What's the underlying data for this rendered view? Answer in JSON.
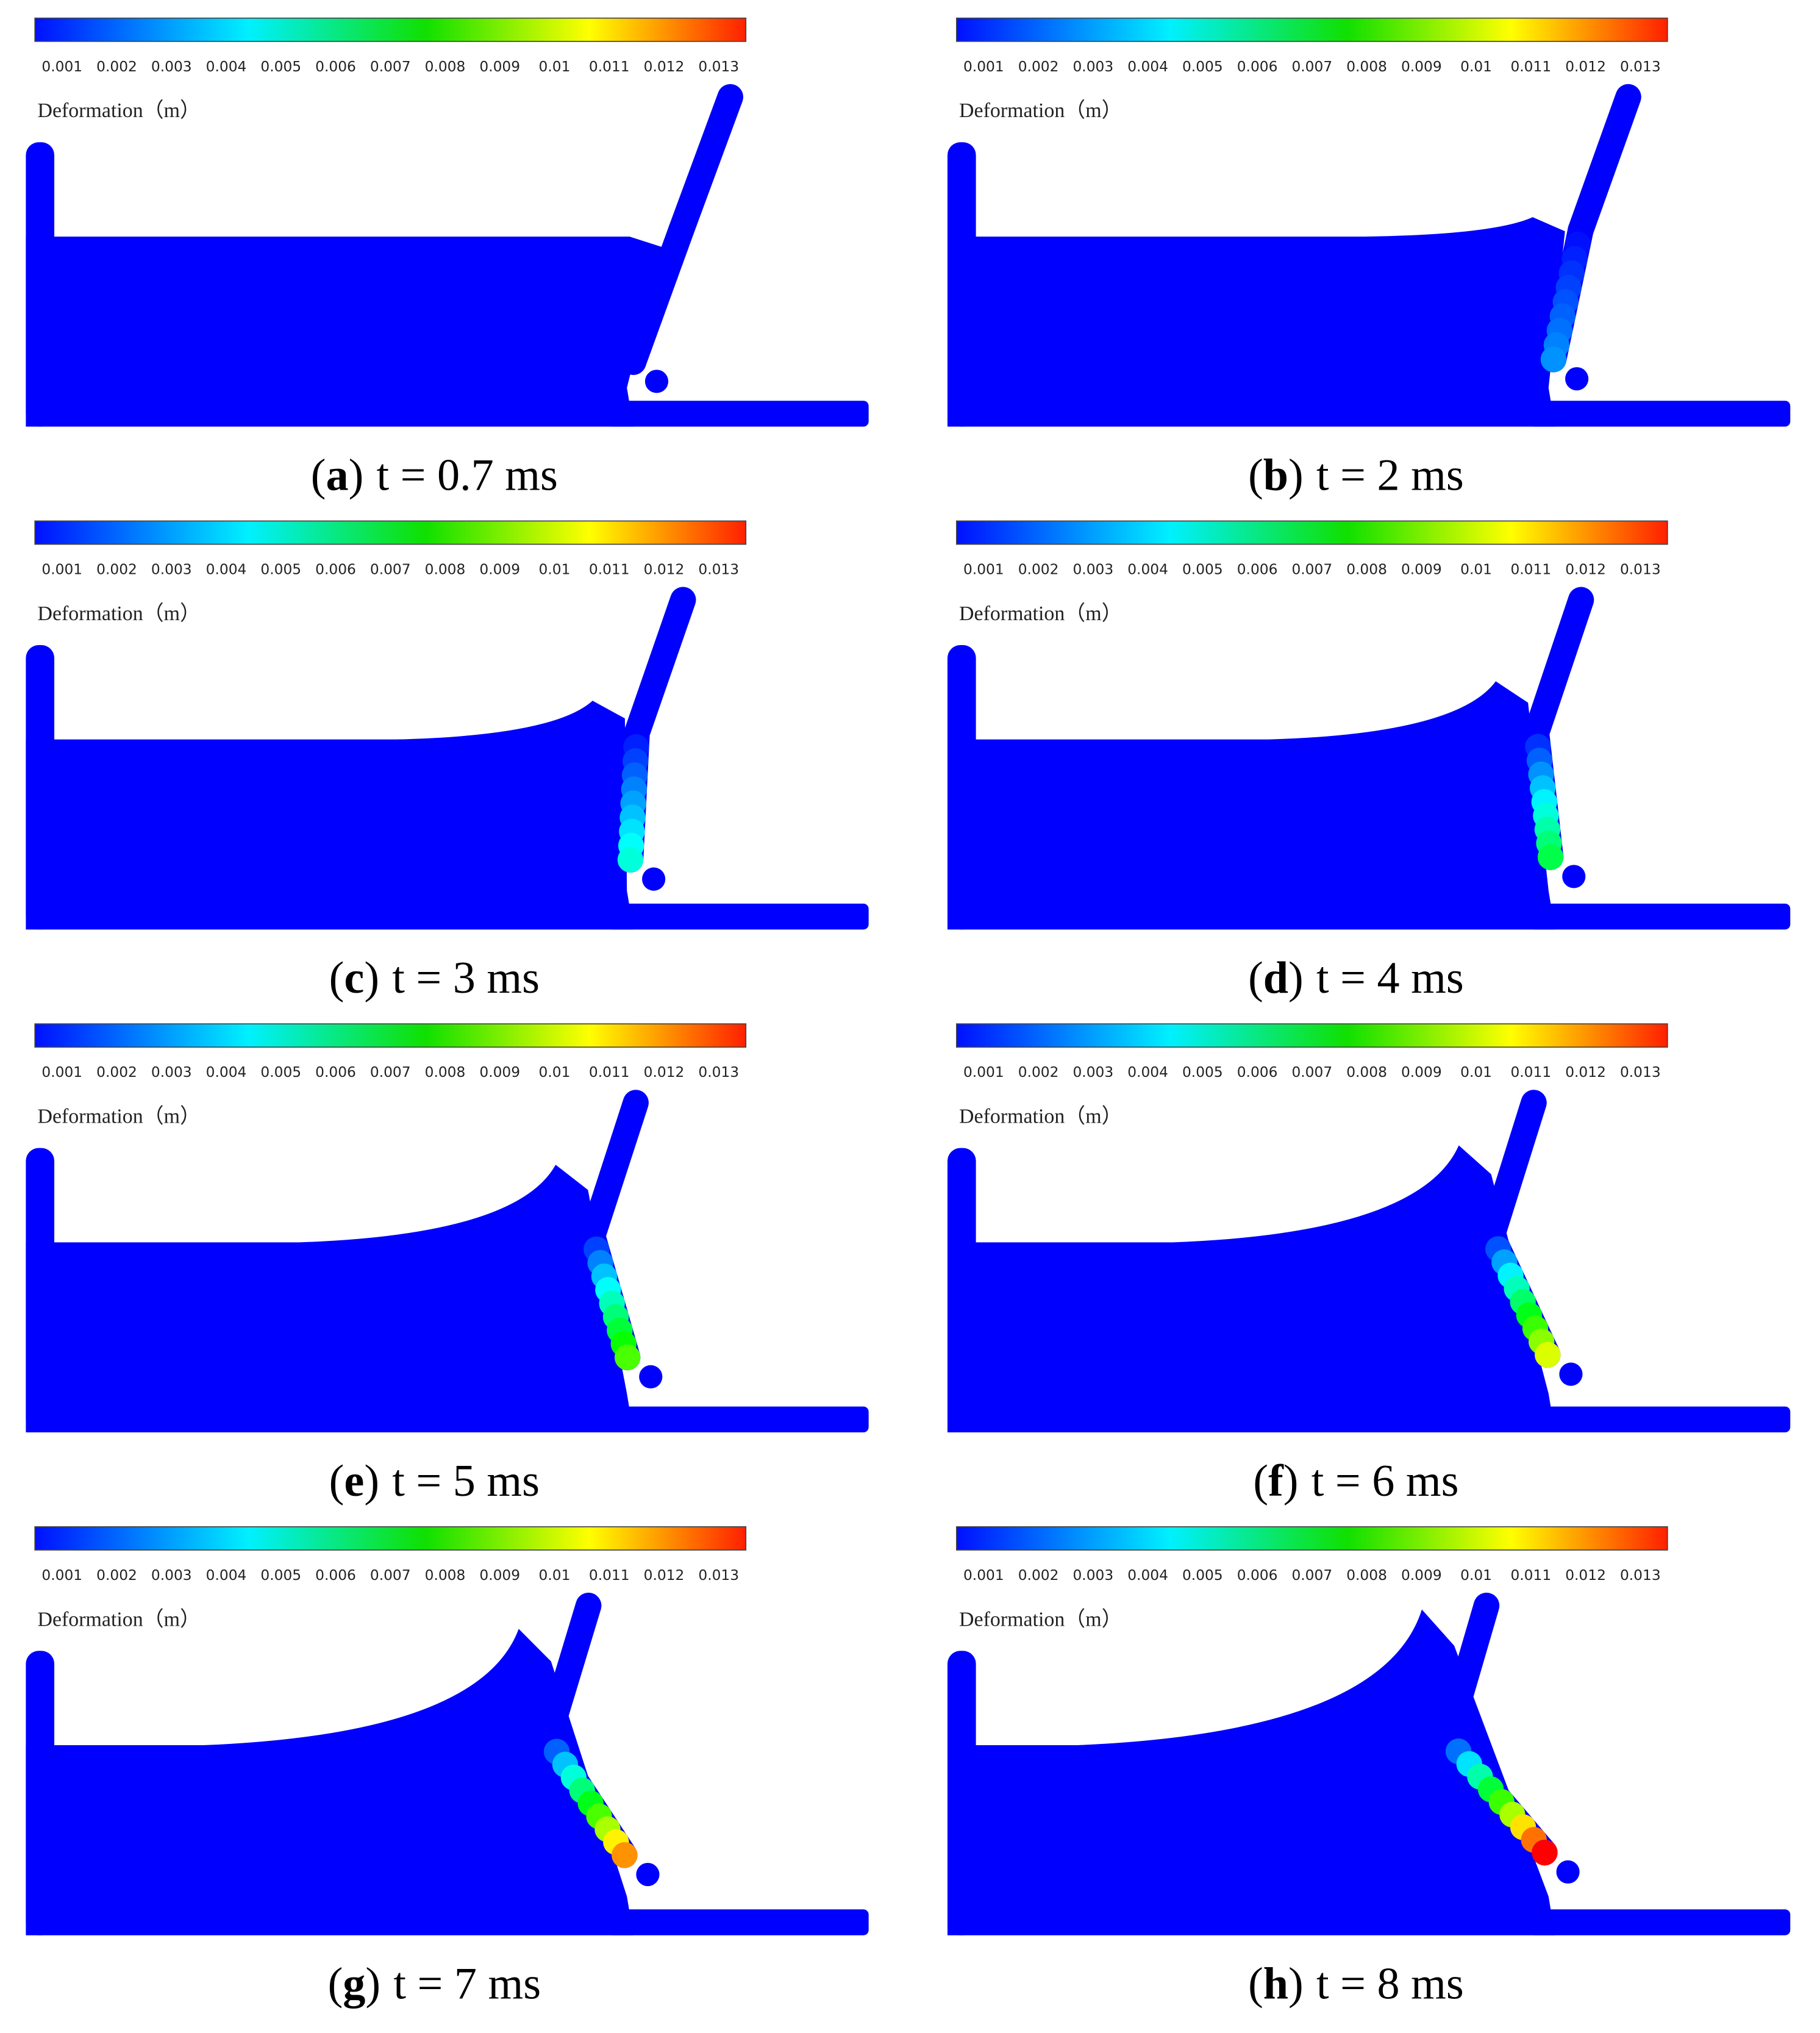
{
  "colorbar": {
    "title": "Deformation（m）",
    "ticks": [
      0.001,
      0.002,
      0.003,
      0.004,
      0.005,
      0.006,
      0.007,
      0.008,
      0.009,
      0.01,
      0.011,
      0.012,
      0.013
    ]
  },
  "panels": [
    {
      "caption": {
        "open": "(",
        "letter": "a",
        "close": ")",
        "time": "t = 0.7 ms"
      }
    },
    {
      "caption": {
        "open": "(",
        "letter": "b",
        "close": ")",
        "time": "t = 2 ms"
      }
    },
    {
      "caption": {
        "open": "(",
        "letter": "c",
        "close": ")",
        "time": "t = 3 ms"
      }
    },
    {
      "caption": {
        "open": "(",
        "letter": "d",
        "close": ")",
        "time": "t = 4 ms"
      }
    },
    {
      "caption": {
        "open": "(",
        "letter": "e",
        "close": ")",
        "time": "t = 5 ms"
      }
    },
    {
      "caption": {
        "open": "(",
        "letter": "f",
        "close": ")",
        "time": "t = 6 ms"
      }
    },
    {
      "caption": {
        "open": "(",
        "letter": "g",
        "close": ")",
        "time": "t = 7 ms"
      }
    },
    {
      "caption": {
        "open": "(",
        "letter": "h",
        "close": ")",
        "time": "t = 8 ms"
      }
    }
  ]
}
